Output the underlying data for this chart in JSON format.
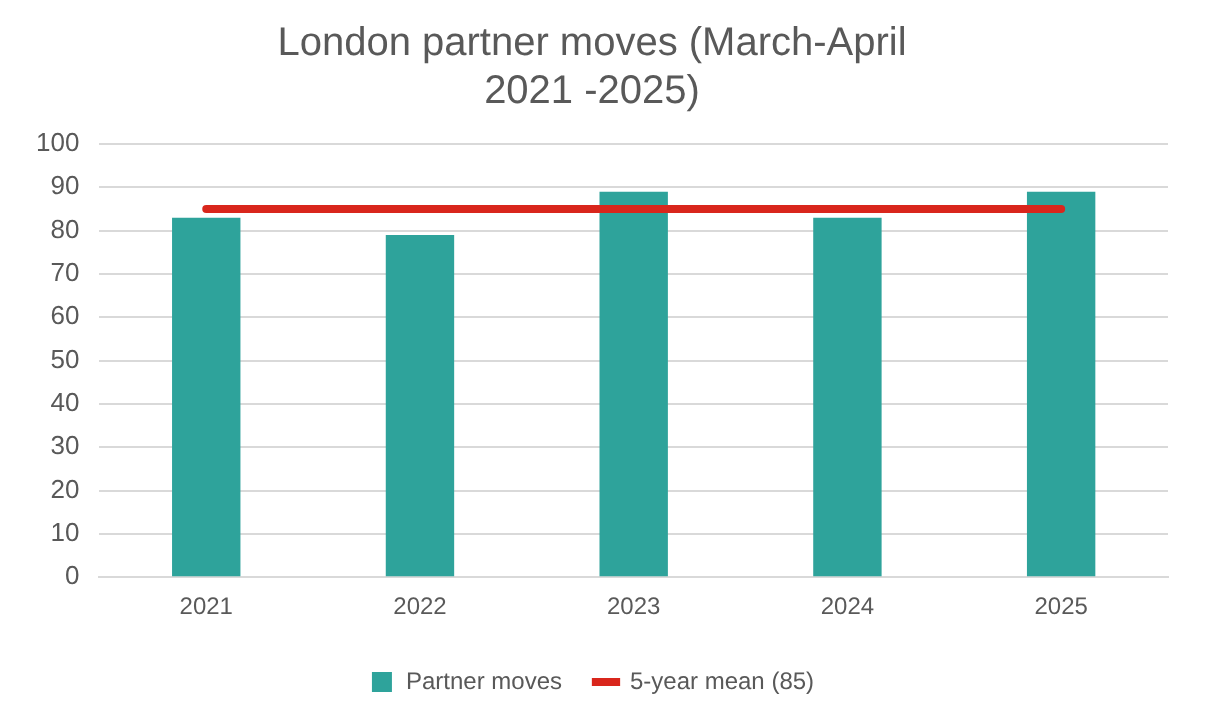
{
  "chart_data": {
    "type": "bar",
    "title": "London partner moves (March-April 2021 -2025)",
    "categories": [
      "2021",
      "2022",
      "2023",
      "2024",
      "2025"
    ],
    "series": [
      {
        "name": "Partner moves",
        "color": "#2ea39b",
        "values": [
          83,
          79,
          89,
          83,
          89
        ]
      },
      {
        "name": "5-year mean (85)",
        "type": "line",
        "color": "#d9261c",
        "values": [
          85,
          85,
          85,
          85,
          85
        ]
      }
    ],
    "ylim": [
      0,
      100
    ],
    "yticks": [
      0,
      10,
      20,
      30,
      40,
      50,
      60,
      70,
      80,
      90,
      100
    ],
    "grid": "y",
    "legend": "bottom",
    "marker": "none"
  }
}
